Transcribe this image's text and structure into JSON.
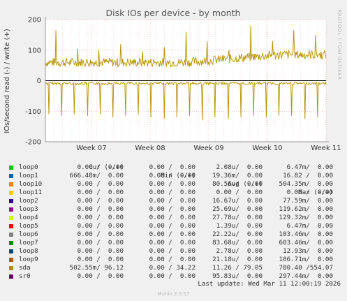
{
  "chart_data": {
    "type": "line",
    "title": "Disk IOs per device - by month",
    "ylabel": "IOs/second read (-) / write (+)",
    "ylim": [
      -200,
      200
    ],
    "yticks": [
      -200,
      -100,
      0,
      100,
      200
    ],
    "xticks": [
      "Week 07",
      "Week 08",
      "Week 09",
      "Week 10",
      "Week 11"
    ],
    "grid": true,
    "series": [
      {
        "name": "sda",
        "color": "#b8960a",
        "write_typical": 60,
        "read_typical": -5,
        "write_peaks": [
          165,
          105,
          100,
          120,
          95,
          110,
          160,
          130,
          100,
          180,
          130,
          165,
          150
        ],
        "read_dips": [
          -110,
          -115,
          -110,
          -115,
          -110,
          -120,
          -115,
          -110,
          -120,
          -125,
          -120,
          -115,
          -130,
          -120,
          -125,
          -120,
          -115,
          -120,
          -115,
          -115,
          -125,
          -120
        ]
      }
    ]
  },
  "side_text": "RRDTOOL / TOBI OETIKER",
  "legend": {
    "headers": {
      "cur": "Cur (-/+)",
      "min": "Min (-/+)",
      "avg": "Avg (-/+)",
      "max": "Max (-/+)"
    },
    "rows": [
      {
        "name": "loop0",
        "color": "#00cc00",
        "cur": "0.00 /  0.00",
        "min": "0.00 /  0.00",
        "avg": "2.08u/  0.00",
        "max": "6.47m/  0.00"
      },
      {
        "name": "loop1",
        "color": "#0066b3",
        "cur": "666.48m/  0.00",
        "min": "0.00 /  0.00",
        "avg": "19.36m/  0.00",
        "max": "16.82 /  0.00"
      },
      {
        "name": "loop10",
        "color": "#ff8000",
        "cur": "0.00 /  0.00",
        "min": "0.00 /  0.00",
        "avg": "80.56u/  0.00",
        "max": "504.35m/  0.00"
      },
      {
        "name": "loop11",
        "color": "#ffcc00",
        "cur": "0.00 /  0.00",
        "min": "0.00 /  0.00",
        "avg": "0.00 /  0.00",
        "max": "0.00 /  0.00"
      },
      {
        "name": "loop2",
        "color": "#330099",
        "cur": "0.00 /  0.00",
        "min": "0.00 /  0.00",
        "avg": "16.67u/  0.00",
        "max": "77.59m/  0.00"
      },
      {
        "name": "loop3",
        "color": "#990099",
        "cur": "0.00 /  0.00",
        "min": "0.00 /  0.00",
        "avg": "25.69u/  0.00",
        "max": "119.62m/  0.00"
      },
      {
        "name": "loop4",
        "color": "#ccff00",
        "cur": "0.00 /  0.00",
        "min": "0.00 /  0.00",
        "avg": "27.78u/  0.00",
        "max": "129.32m/  0.00"
      },
      {
        "name": "loop5",
        "color": "#ff0000",
        "cur": "0.00 /  0.00",
        "min": "0.00 /  0.00",
        "avg": "1.39u/  0.00",
        "max": "6.47m/  0.00"
      },
      {
        "name": "loop6",
        "color": "#808080",
        "cur": "0.00 /  0.00",
        "min": "0.00 /  0.00",
        "avg": "22.22u/  0.00",
        "max": "103.46m/  0.00"
      },
      {
        "name": "loop7",
        "color": "#008f00",
        "cur": "0.00 /  0.00",
        "min": "0.00 /  0.00",
        "avg": "83.68u/  0.00",
        "max": "603.46m/  0.00"
      },
      {
        "name": "loop8",
        "color": "#00487d",
        "cur": "0.00 /  0.00",
        "min": "0.00 /  0.00",
        "avg": "2.78u/  0.00",
        "max": "12.93m/  0.00"
      },
      {
        "name": "loop9",
        "color": "#b35a00",
        "cur": "0.00 /  0.00",
        "min": "0.00 /  0.00",
        "avg": "21.18u/  0.00",
        "max": "106.71m/  0.00"
      },
      {
        "name": "sda",
        "color": "#b38f00",
        "cur": "502.55m/ 96.12",
        "min": "0.00 / 34.22",
        "avg": "11.26 / 79.05",
        "max": "780.40 /554.07"
      },
      {
        "name": "sr0",
        "color": "#6b006b",
        "cur": "0.00 /  0.00",
        "min": "0.00 /  0.00",
        "avg": "95.83u/  0.00",
        "max": "297.44m/  0.00"
      }
    ]
  },
  "footer": "Last update: Wed Mar 11 12:00:19 2026",
  "munin_version": "Munin 2.0.57"
}
